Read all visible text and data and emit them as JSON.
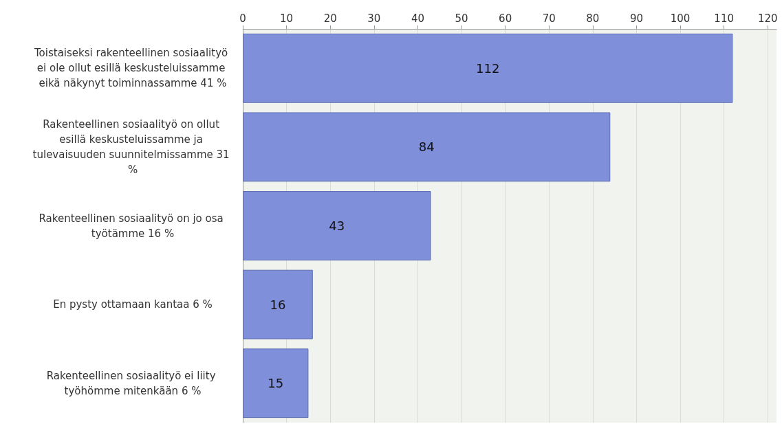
{
  "chart_data": {
    "type": "bar",
    "orientation": "horizontal",
    "categories": [
      "Toistaiseksi rakenteellinen sosiaalityö ei ole ollut esillä keskusteluissamme eikä näkynyt toiminnassamme 41 %",
      "Rakenteellinen sosiaalityö on ollut esillä keskusteluissamme ja tulevaisuuden suunnitelmissamme 31 %",
      "Rakenteellinen sosiaalityö on jo osa työtämme 16 %",
      "En pysty ottamaan kantaa 6 %",
      "Rakenteellinen sosiaalityö ei liity työhömme mitenkään 6 %"
    ],
    "values": [
      112,
      84,
      43,
      16,
      15
    ],
    "color": "#7f8fd9",
    "xlim": [
      0,
      122
    ],
    "xticks": [
      0,
      10,
      20,
      30,
      40,
      50,
      60,
      70,
      80,
      90,
      100,
      110,
      120
    ],
    "grid": "x",
    "data_labels": true
  }
}
